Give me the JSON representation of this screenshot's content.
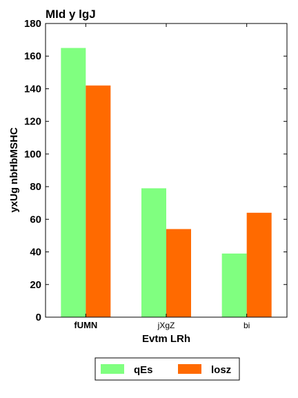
{
  "chart_data": {
    "type": "bar",
    "title": "MId  y lgJ",
    "xlabel": "Evtm  LRh",
    "ylabel": "yxUg  nbHbMSHC",
    "categories": [
      "fUMN",
      "jXgZ",
      "bi"
    ],
    "ylim": [
      0,
      180
    ],
    "yticks": [
      0,
      20,
      40,
      60,
      80,
      100,
      120,
      140,
      160,
      180
    ],
    "grid": false,
    "legend_position": "bottom-center",
    "series": [
      {
        "name": "qEs",
        "color": "#80ff80",
        "values": [
          165,
          79,
          39
        ]
      },
      {
        "name": "losz",
        "color": "#ff6a00",
        "values": [
          142,
          54,
          64
        ]
      }
    ]
  }
}
